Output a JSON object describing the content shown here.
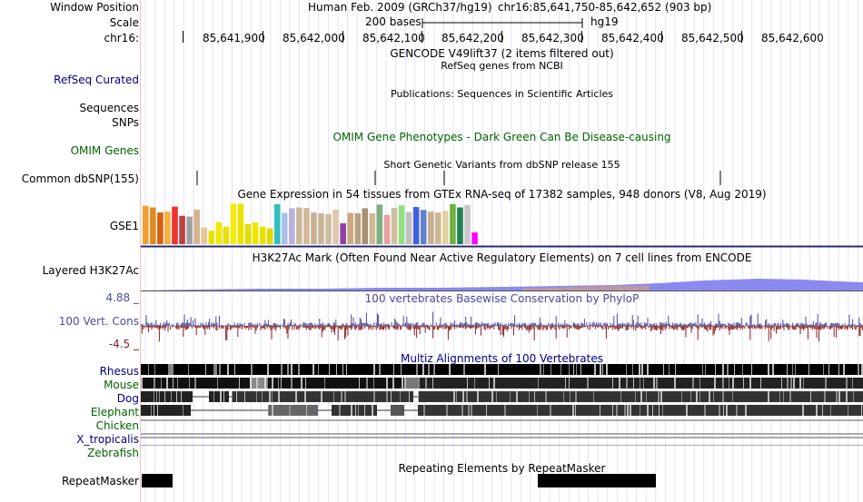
{
  "header": {
    "window_position_label": "Window Position",
    "scale_label": "Scale",
    "chrom_label": "chr16:",
    "assembly_text": "Human Feb. 2009 (GRCh37/hg19)",
    "position_text": "chr16:85,641,750-85,642,652 (903 bp)",
    "scale_text": "200 bases",
    "db_text": "hg19"
  },
  "ruler": {
    "ticks": [
      "85,641,900",
      "85,642,000",
      "85,642,100",
      "85,642,200",
      "85,642,300",
      "85,642,400",
      "85,642,500",
      "85,642,600"
    ]
  },
  "tracks": {
    "gencode": {
      "title": "GENCODE V49lift37 (2 items filtered out)"
    },
    "refseq": {
      "label": "RefSeq Curated",
      "title": "RefSeq genes from NCBI"
    },
    "publications": {
      "title": "Publications: Sequences in Scientific Articles"
    },
    "sequences": {
      "label": "Sequences"
    },
    "snps": {
      "label": "SNPs"
    },
    "omim": {
      "label": "OMIM Genes",
      "title": "OMIM Gene Phenotypes - Dark Green Can Be Disease-causing"
    },
    "dbsnp": {
      "label": "Common dbSNP(155)",
      "title": "Short Genetic Variants from dbSNP release 155"
    },
    "gtex": {
      "label": "GSE1",
      "title": "Gene Expression in 54 tissues from GTEx RNA-seq of 17382 samples, 948 donors (V8, Aug 2019)"
    },
    "h3k27ac": {
      "label": "Layered H3K27Ac",
      "title": "H3K27Ac Mark (Often Found Near Active Regulatory Elements) on 7 cell lines from ENCODE"
    },
    "phylop": {
      "label": "100 Vert. Cons",
      "max_label": "4.88 _",
      "min_label": "-4.5 _",
      "title": "100 vertebrates Basewise Conservation by PhyloP"
    },
    "multiz": {
      "title": "Multiz Alignments of 100 Vertebrates",
      "species": [
        "Rhesus",
        "Mouse",
        "Dog",
        "Elephant",
        "Chicken",
        "X_tropicalis",
        "Zebrafish"
      ]
    },
    "repeatmasker": {
      "label": "RepeatMasker",
      "title": "Repeating Elements by RepeatMasker"
    }
  },
  "gtex_colors": [
    "#f0a030",
    "#e08a20",
    "#d95f0e",
    "#f5b041",
    "#ee3333",
    "#c04040",
    "#a0a0a0",
    "#d4b48c",
    "#e8c79a",
    "#e8e000",
    "#f0e800",
    "#e8e000",
    "#f2ea10",
    "#eae300",
    "#e5dd00",
    "#eee600",
    "#e9e100",
    "#e1d900",
    "#30c0c0",
    "#a9c0e8",
    "#b8b0e0",
    "#cbb89c",
    "#d2b898",
    "#c8b090",
    "#c8b498",
    "#d0bca0",
    "#e0c8b0",
    "#9040a0",
    "#c8a880",
    "#b8a080",
    "#a89070",
    "#d0b890",
    "#80b080",
    "#e8a0a0",
    "#d0c0a0",
    "#90e080",
    "#c0c0c0",
    "#4060e0",
    "#6080d0",
    "#c8b090",
    "#d0b890",
    "#e0d0a0",
    "#70b040",
    "#208050",
    "#c8c8c8",
    "#ff00ff"
  ],
  "gtex_values": [
    0.92,
    0.88,
    0.76,
    0.78,
    0.9,
    0.68,
    0.66,
    0.83,
    0.4,
    0.32,
    0.53,
    0.42,
    0.97,
    0.97,
    0.48,
    0.52,
    0.42,
    0.38,
    0.96,
    0.75,
    0.86,
    0.88,
    0.87,
    0.76,
    0.74,
    0.72,
    0.83,
    0.5,
    0.75,
    0.74,
    0.86,
    0.74,
    0.95,
    0.7,
    0.87,
    0.93,
    0.77,
    0.89,
    0.82,
    0.78,
    0.76,
    0.8,
    0.96,
    0.88,
    0.94,
    0.28
  ],
  "colors": {
    "navy": "#000080",
    "green": "#006400",
    "cons_blue": "#4b4b9a",
    "cons_red": "#8b2020",
    "h3k27ac": "#8a8af0"
  }
}
